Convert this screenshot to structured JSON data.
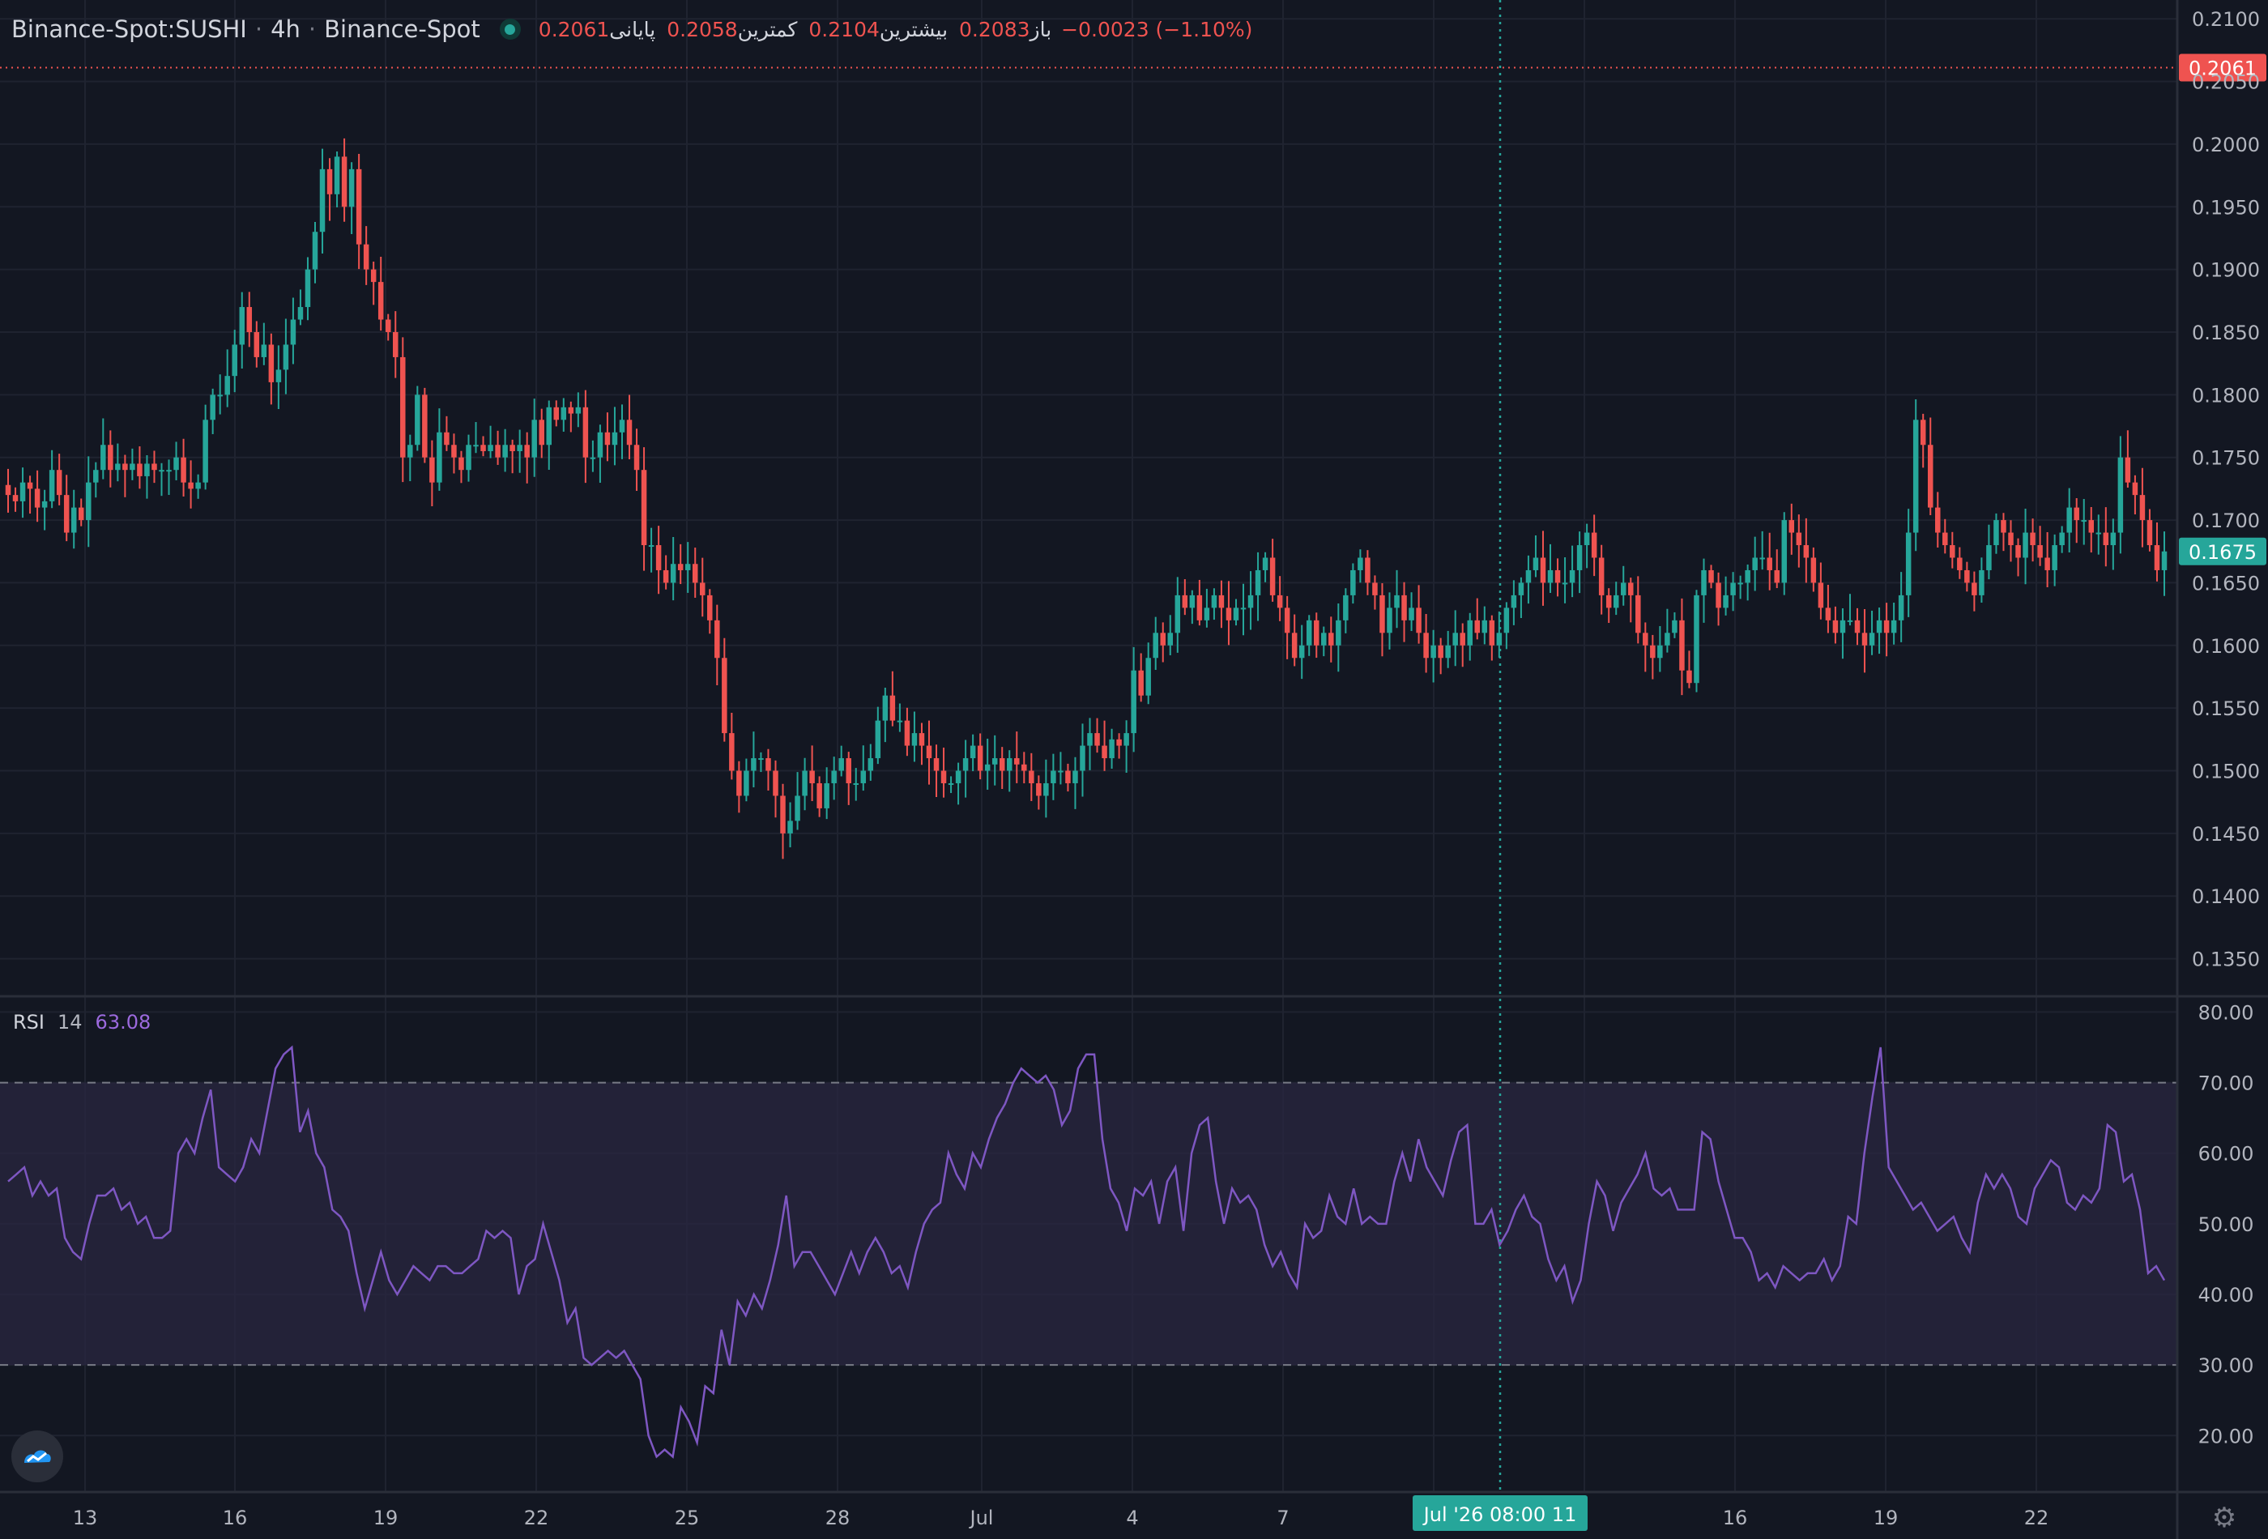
{
  "legend": {
    "symbol": "Binance-Spot:SUSHI",
    "interval": "4h",
    "exchange": "Binance-Spot",
    "open_label": "باز",
    "open": "0.2083",
    "high_label": "بیشترین",
    "high": "0.2104",
    "low_label": "کمترین",
    "low": "0.2058",
    "close_label": "پایانی",
    "close": "0.2061",
    "change": "−0.0023 (−1.10%)"
  },
  "rsi_legend": {
    "name": "RSI",
    "period": "14",
    "value": "63.08"
  },
  "crosshair_label": "Jul '26   08:00 11",
  "last_price_label": "0.2061",
  "current_price_label": "0.1675",
  "colors": {
    "background": "#131722",
    "up": "#26a69a",
    "down": "#ef5350",
    "rsi_line": "#7e57c2",
    "rsi_band": "#2a2740",
    "grid": "#1f2330",
    "crosshair": "#26a69a"
  },
  "icons": [
    "tradingview-logo-icon",
    "settings-gear-icon"
  ],
  "chart_data": [
    {
      "type": "candlestick",
      "title": "",
      "ylim": [
        0.132,
        0.2115
      ],
      "y_ticks": [
        "0.1350",
        "0.1400",
        "0.1450",
        "0.1500",
        "0.1550",
        "0.1600",
        "0.1650",
        "0.1700",
        "0.1750",
        "0.1800",
        "0.1850",
        "0.1900",
        "0.1950",
        "0.2000",
        "0.2050",
        "0.2100"
      ],
      "x_ticks": [
        "13",
        "16",
        "19",
        "22",
        "25",
        "28",
        "Jul",
        "4",
        "7",
        "",
        "",
        "16",
        "19",
        "22"
      ],
      "price_lines": [
        {
          "value": 0.2061,
          "label": "0.2061",
          "style": "dotted",
          "color": "#ef5350"
        },
        {
          "value": 0.1675,
          "label": "0.1675",
          "style": "none",
          "color": "#26a69a"
        }
      ],
      "close_series": [
        0.172,
        0.1715,
        0.173,
        0.1725,
        0.171,
        0.1715,
        0.174,
        0.172,
        0.169,
        0.171,
        0.17,
        0.173,
        0.174,
        0.176,
        0.174,
        0.1745,
        0.174,
        0.1745,
        0.1735,
        0.1745,
        0.174,
        0.174,
        0.174,
        0.175,
        0.173,
        0.1725,
        0.173,
        0.178,
        0.18,
        0.18,
        0.1815,
        0.184,
        0.187,
        0.185,
        0.183,
        0.184,
        0.181,
        0.182,
        0.184,
        0.186,
        0.187,
        0.19,
        0.193,
        0.198,
        0.196,
        0.199,
        0.195,
        0.198,
        0.192,
        0.19,
        0.189,
        0.186,
        0.185,
        0.183,
        0.175,
        0.176,
        0.18,
        0.175,
        0.173,
        0.177,
        0.176,
        0.175,
        0.174,
        0.176,
        0.176,
        0.1755,
        0.176,
        0.175,
        0.176,
        0.1755,
        0.176,
        0.175,
        0.178,
        0.176,
        0.179,
        0.178,
        0.179,
        0.1785,
        0.179,
        0.175,
        0.175,
        0.177,
        0.176,
        0.177,
        0.178,
        0.176,
        0.174,
        0.168,
        0.168,
        0.166,
        0.165,
        0.1665,
        0.166,
        0.1665,
        0.165,
        0.164,
        0.162,
        0.159,
        0.153,
        0.15,
        0.148,
        0.15,
        0.151,
        0.151,
        0.15,
        0.148,
        0.145,
        0.146,
        0.148,
        0.15,
        0.149,
        0.147,
        0.149,
        0.15,
        0.151,
        0.149,
        0.149,
        0.15,
        0.151,
        0.154,
        0.156,
        0.154,
        0.154,
        0.152,
        0.153,
        0.152,
        0.151,
        0.15,
        0.149,
        0.149,
        0.15,
        0.151,
        0.152,
        0.15,
        0.1505,
        0.151,
        0.15,
        0.151,
        0.1505,
        0.15,
        0.149,
        0.148,
        0.149,
        0.15,
        0.15,
        0.149,
        0.15,
        0.152,
        0.153,
        0.152,
        0.151,
        0.1525,
        0.152,
        0.153,
        0.158,
        0.156,
        0.159,
        0.161,
        0.16,
        0.161,
        0.164,
        0.163,
        0.164,
        0.162,
        0.163,
        0.164,
        0.163,
        0.162,
        0.163,
        0.163,
        0.164,
        0.166,
        0.167,
        0.164,
        0.163,
        0.161,
        0.159,
        0.16,
        0.162,
        0.16,
        0.161,
        0.16,
        0.162,
        0.164,
        0.166,
        0.167,
        0.165,
        0.164,
        0.161,
        0.163,
        0.164,
        0.162,
        0.163,
        0.161,
        0.159,
        0.16,
        0.159,
        0.16,
        0.161,
        0.16,
        0.162,
        0.161,
        0.162,
        0.16,
        0.161,
        0.163,
        0.164,
        0.165,
        0.166,
        0.167,
        0.165,
        0.166,
        0.165,
        0.165,
        0.166,
        0.168,
        0.169,
        0.167,
        0.164,
        0.163,
        0.164,
        0.165,
        0.164,
        0.161,
        0.16,
        0.159,
        0.16,
        0.161,
        0.162,
        0.158,
        0.157,
        0.164,
        0.166,
        0.165,
        0.163,
        0.164,
        0.165,
        0.165,
        0.166,
        0.167,
        0.167,
        0.166,
        0.165,
        0.17,
        0.169,
        0.168,
        0.167,
        0.165,
        0.163,
        0.162,
        0.161,
        0.162,
        0.162,
        0.161,
        0.16,
        0.161,
        0.162,
        0.161,
        0.162,
        0.164,
        0.169,
        0.178,
        0.176,
        0.171,
        0.169,
        0.168,
        0.167,
        0.166,
        0.165,
        0.164,
        0.166,
        0.168,
        0.17,
        0.169,
        0.168,
        0.167,
        0.169,
        0.168,
        0.167,
        0.166,
        0.168,
        0.169,
        0.171,
        0.17,
        0.17,
        0.169,
        0.169,
        0.168,
        0.169,
        0.175,
        0.173,
        0.172,
        0.17,
        0.168,
        0.166,
        0.1675
      ],
      "up_color": "#26a69a",
      "down_color": "#ef5350"
    },
    {
      "type": "line",
      "title": "",
      "ylim": [
        12,
        82
      ],
      "y_ticks": [
        "20.00",
        "30.00",
        "40.00",
        "50.00",
        "60.00",
        "70.00",
        "80.00"
      ],
      "bands": [
        {
          "from": 30,
          "to": 70,
          "dashed_lines": [
            30,
            70
          ]
        }
      ],
      "values": [
        56,
        57,
        58,
        54,
        56,
        54,
        55,
        48,
        46,
        45,
        50,
        54,
        54,
        55,
        52,
        53,
        50,
        51,
        48,
        48,
        49,
        60,
        62,
        60,
        65,
        69,
        58,
        57,
        56,
        58,
        62,
        60,
        66,
        72,
        74,
        75,
        63,
        66,
        60,
        58,
        52,
        51,
        49,
        43,
        38,
        42,
        46,
        42,
        40,
        42,
        44,
        43,
        42,
        44,
        44,
        43,
        43,
        44,
        45,
        49,
        48,
        49,
        48,
        40,
        44,
        45,
        50,
        46,
        42,
        36,
        38,
        31,
        30,
        31,
        32,
        31,
        32,
        30,
        28,
        20,
        17,
        18,
        17,
        24,
        22,
        19,
        27,
        26,
        35,
        30,
        39,
        37,
        40,
        38,
        42,
        47,
        54,
        44,
        46,
        46,
        44,
        42,
        40,
        43,
        46,
        43,
        46,
        48,
        46,
        43,
        44,
        41,
        46,
        50,
        52,
        53,
        60,
        57,
        55,
        60,
        58,
        62,
        65,
        67,
        70,
        72,
        71,
        70,
        71,
        69,
        64,
        66,
        72,
        74,
        74,
        62,
        55,
        53,
        49,
        55,
        54,
        56,
        50,
        56,
        58,
        49,
        60,
        64,
        65,
        56,
        50,
        55,
        53,
        54,
        52,
        47,
        44,
        46,
        43,
        41,
        50,
        48,
        49,
        54,
        51,
        50,
        55,
        50,
        51,
        50,
        50,
        56,
        60,
        56,
        62,
        58,
        56,
        54,
        59,
        63,
        64,
        50,
        50,
        52,
        47,
        49,
        52,
        54,
        51,
        50,
        45,
        42,
        44,
        39,
        42,
        50,
        56,
        54,
        49,
        53,
        55,
        57,
        60,
        55,
        54,
        55,
        52,
        52,
        52,
        63,
        62,
        56,
        52,
        48,
        48,
        46,
        42,
        43,
        41,
        44,
        43,
        42,
        43,
        43,
        45,
        42,
        44,
        51,
        50,
        60,
        68,
        75,
        58,
        56,
        54,
        52,
        53,
        51,
        49,
        50,
        51,
        48,
        46,
        53,
        57,
        55,
        57,
        55,
        51,
        50,
        55,
        57,
        59,
        58,
        53,
        52,
        54,
        53,
        55,
        64,
        63,
        56,
        57,
        52,
        43,
        44,
        42
      ]
    }
  ]
}
